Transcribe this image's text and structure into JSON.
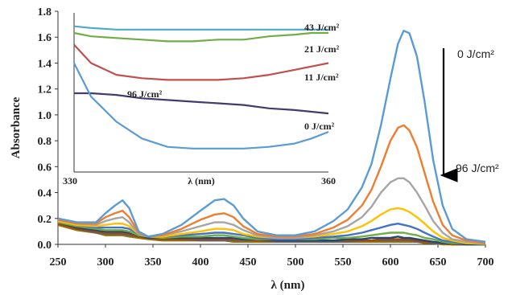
{
  "chart_data": [
    {
      "type": "line",
      "title": "",
      "xlabel": "λ (nm)",
      "ylabel": "Absorbance",
      "xlim": [
        250,
        700
      ],
      "ylim": [
        0,
        1.8
      ],
      "xticks": [
        "250",
        "300",
        "350",
        "400",
        "450",
        "500",
        "550",
        "600",
        "650",
        "700"
      ],
      "yticks": [
        "0.0",
        "0.2",
        "0.4",
        "0.6",
        "0.8",
        "1.0",
        "1.2",
        "1.4",
        "1.6",
        "1.8"
      ],
      "grid": false,
      "legend": "none",
      "dose_arrow": {
        "top_label": "0 J/cm²",
        "bottom_label": "96 J/cm²",
        "direction": "down"
      },
      "series": [
        {
          "color": "#5b9bd5",
          "x": [
            250,
            270,
            290,
            300,
            310,
            318,
            325,
            335,
            345,
            360,
            380,
            400,
            415,
            425,
            435,
            445,
            460,
            480,
            500,
            520,
            540,
            555,
            570,
            580,
            590,
            600,
            608,
            614,
            620,
            628,
            636,
            645,
            655,
            665,
            680,
            700
          ],
          "y": [
            0.2,
            0.17,
            0.17,
            0.24,
            0.3,
            0.34,
            0.28,
            0.1,
            0.06,
            0.08,
            0.15,
            0.26,
            0.34,
            0.35,
            0.3,
            0.2,
            0.1,
            0.07,
            0.07,
            0.1,
            0.18,
            0.27,
            0.44,
            0.62,
            0.92,
            1.28,
            1.55,
            1.65,
            1.63,
            1.45,
            1.1,
            0.65,
            0.3,
            0.12,
            0.04,
            0.02
          ]
        },
        {
          "color": "#ed7d31",
          "x": [
            250,
            270,
            290,
            300,
            310,
            318,
            325,
            335,
            345,
            360,
            380,
            400,
            415,
            425,
            435,
            445,
            460,
            480,
            500,
            520,
            540,
            555,
            570,
            580,
            590,
            600,
            608,
            614,
            620,
            628,
            636,
            645,
            655,
            665,
            680,
            700
          ],
          "y": [
            0.19,
            0.16,
            0.16,
            0.21,
            0.24,
            0.26,
            0.21,
            0.09,
            0.06,
            0.07,
            0.12,
            0.19,
            0.23,
            0.24,
            0.21,
            0.14,
            0.08,
            0.06,
            0.06,
            0.08,
            0.13,
            0.19,
            0.3,
            0.42,
            0.6,
            0.8,
            0.9,
            0.92,
            0.88,
            0.75,
            0.55,
            0.33,
            0.15,
            0.07,
            0.03,
            0.01
          ]
        },
        {
          "color": "#a5a5a5",
          "x": [
            250,
            270,
            290,
            300,
            310,
            318,
            325,
            335,
            345,
            360,
            380,
            400,
            415,
            425,
            435,
            445,
            460,
            480,
            500,
            520,
            540,
            555,
            570,
            580,
            590,
            600,
            608,
            614,
            620,
            628,
            636,
            645,
            655,
            665,
            680,
            700
          ],
          "y": [
            0.19,
            0.16,
            0.15,
            0.18,
            0.2,
            0.21,
            0.17,
            0.08,
            0.06,
            0.07,
            0.1,
            0.14,
            0.17,
            0.17,
            0.15,
            0.11,
            0.07,
            0.05,
            0.05,
            0.07,
            0.1,
            0.14,
            0.21,
            0.29,
            0.4,
            0.48,
            0.51,
            0.51,
            0.48,
            0.4,
            0.3,
            0.18,
            0.09,
            0.04,
            0.02,
            0.01
          ]
        },
        {
          "color": "#ffc000",
          "x": [
            250,
            270,
            290,
            300,
            310,
            318,
            325,
            335,
            345,
            360,
            380,
            400,
            415,
            425,
            435,
            445,
            460,
            480,
            500,
            520,
            540,
            555,
            570,
            580,
            590,
            600,
            608,
            614,
            620,
            628,
            636,
            645,
            655,
            665,
            680,
            700
          ],
          "y": [
            0.18,
            0.15,
            0.14,
            0.15,
            0.16,
            0.16,
            0.14,
            0.08,
            0.06,
            0.06,
            0.08,
            0.1,
            0.12,
            0.12,
            0.11,
            0.08,
            0.06,
            0.05,
            0.05,
            0.06,
            0.08,
            0.1,
            0.14,
            0.18,
            0.23,
            0.27,
            0.28,
            0.27,
            0.25,
            0.21,
            0.16,
            0.1,
            0.05,
            0.03,
            0.01,
            0.01
          ]
        },
        {
          "color": "#4472c4",
          "x": [
            250,
            270,
            290,
            300,
            310,
            318,
            325,
            335,
            345,
            360,
            380,
            400,
            415,
            425,
            435,
            445,
            460,
            480,
            500,
            520,
            540,
            555,
            570,
            580,
            590,
            600,
            608,
            614,
            620,
            628,
            636,
            645,
            655,
            665,
            680,
            700
          ],
          "y": [
            0.18,
            0.15,
            0.13,
            0.13,
            0.13,
            0.13,
            0.12,
            0.08,
            0.06,
            0.06,
            0.07,
            0.08,
            0.09,
            0.09,
            0.08,
            0.07,
            0.05,
            0.04,
            0.04,
            0.05,
            0.06,
            0.07,
            0.09,
            0.11,
            0.13,
            0.15,
            0.16,
            0.15,
            0.14,
            0.12,
            0.09,
            0.06,
            0.03,
            0.02,
            0.01,
            0.01
          ]
        },
        {
          "color": "#70ad47",
          "x": [
            250,
            270,
            290,
            300,
            310,
            318,
            325,
            335,
            345,
            360,
            380,
            400,
            415,
            425,
            435,
            445,
            460,
            480,
            500,
            520,
            540,
            555,
            570,
            580,
            590,
            600,
            608,
            614,
            620,
            628,
            636,
            645,
            655,
            665,
            680,
            700
          ],
          "y": [
            0.17,
            0.14,
            0.12,
            0.11,
            0.11,
            0.11,
            0.1,
            0.07,
            0.06,
            0.05,
            0.06,
            0.06,
            0.07,
            0.07,
            0.06,
            0.05,
            0.04,
            0.04,
            0.04,
            0.04,
            0.05,
            0.05,
            0.06,
            0.07,
            0.08,
            0.09,
            0.09,
            0.09,
            0.08,
            0.07,
            0.05,
            0.04,
            0.02,
            0.01,
            0.01,
            0.0
          ]
        },
        {
          "color": "#264478",
          "x": [
            250,
            270,
            290,
            300,
            310,
            318,
            325,
            335,
            345,
            360,
            380,
            400,
            415,
            425,
            435,
            445,
            460,
            480,
            500,
            520,
            540,
            555,
            570,
            580,
            590,
            600,
            608,
            614,
            620,
            628,
            636,
            645,
            655,
            665,
            680,
            700
          ],
          "y": [
            0.17,
            0.13,
            0.11,
            0.1,
            0.1,
            0.1,
            0.09,
            0.07,
            0.05,
            0.05,
            0.05,
            0.05,
            0.05,
            0.05,
            0.05,
            0.04,
            0.04,
            0.03,
            0.03,
            0.03,
            0.03,
            0.04,
            0.04,
            0.05,
            0.05,
            0.05,
            0.06,
            0.05,
            0.05,
            0.04,
            0.03,
            0.02,
            0.01,
            0.01,
            0.0,
            0.0
          ]
        },
        {
          "color": "#9e480e",
          "x": [
            250,
            270,
            290,
            300,
            310,
            318,
            325,
            335,
            345,
            360,
            380,
            400,
            415,
            425,
            435,
            445,
            460,
            480,
            500,
            520,
            540,
            555,
            570,
            580,
            590,
            600,
            608,
            614,
            620,
            628,
            636,
            645,
            655,
            665,
            680,
            700
          ],
          "y": [
            0.16,
            0.12,
            0.1,
            0.09,
            0.09,
            0.09,
            0.08,
            0.06,
            0.05,
            0.04,
            0.04,
            0.04,
            0.04,
            0.04,
            0.04,
            0.04,
            0.03,
            0.03,
            0.03,
            0.03,
            0.03,
            0.03,
            0.03,
            0.03,
            0.04,
            0.04,
            0.04,
            0.04,
            0.04,
            0.03,
            0.02,
            0.02,
            0.01,
            0.0,
            0.0,
            0.0
          ]
        },
        {
          "color": "#636363",
          "x": [
            250,
            270,
            290,
            300,
            310,
            318,
            325,
            335,
            345,
            360,
            380,
            400,
            415,
            425,
            435,
            445,
            460,
            480,
            500,
            520,
            540,
            555,
            570,
            580,
            590,
            600,
            608,
            614,
            620,
            628,
            636,
            645,
            655,
            665,
            680,
            700
          ],
          "y": [
            0.16,
            0.12,
            0.09,
            0.08,
            0.08,
            0.08,
            0.07,
            0.06,
            0.05,
            0.04,
            0.04,
            0.03,
            0.03,
            0.03,
            0.03,
            0.03,
            0.03,
            0.02,
            0.02,
            0.02,
            0.02,
            0.02,
            0.03,
            0.03,
            0.03,
            0.03,
            0.03,
            0.03,
            0.03,
            0.02,
            0.02,
            0.01,
            0.01,
            0.0,
            0.0,
            0.0
          ]
        },
        {
          "color": "#997300",
          "x": [
            250,
            270,
            290,
            300,
            310,
            318,
            325,
            335,
            345,
            360,
            380,
            400,
            415,
            425,
            435,
            445,
            460,
            480,
            500,
            520,
            540,
            555,
            570,
            580,
            590,
            600,
            608,
            614,
            620,
            628,
            636,
            645,
            655,
            665,
            680,
            700
          ],
          "y": [
            0.15,
            0.11,
            0.09,
            0.07,
            0.07,
            0.07,
            0.06,
            0.05,
            0.04,
            0.03,
            0.03,
            0.03,
            0.03,
            0.03,
            0.02,
            0.02,
            0.02,
            0.02,
            0.02,
            0.02,
            0.02,
            0.02,
            0.02,
            0.02,
            0.02,
            0.02,
            0.02,
            0.02,
            0.02,
            0.02,
            0.01,
            0.01,
            0.0,
            0.0,
            0.0,
            0.0
          ]
        }
      ]
    },
    {
      "type": "line",
      "title": "",
      "xlabel": "λ (nm)",
      "ylabel": "",
      "xlim": [
        330,
        360
      ],
      "ylim": [
        0.85,
        1.8
      ],
      "xtick_labels": [
        "330",
        "360"
      ],
      "grid": false,
      "series": [
        {
          "name": "43 J/cm²",
          "color": "#4bacc6",
          "x": [
            330,
            332,
            335,
            338,
            341,
            344,
            347,
            350,
            353,
            356,
            358,
            360
          ],
          "y": [
            1.72,
            1.71,
            1.7,
            1.7,
            1.7,
            1.7,
            1.7,
            1.7,
            1.7,
            1.7,
            1.7,
            1.7
          ]
        },
        {
          "name": "21 J/cm²",
          "color": "#70ad47",
          "x": [
            330,
            332,
            335,
            338,
            341,
            344,
            347,
            350,
            353,
            356,
            358,
            360
          ],
          "y": [
            1.68,
            1.66,
            1.65,
            1.64,
            1.63,
            1.63,
            1.64,
            1.64,
            1.66,
            1.67,
            1.68,
            1.68
          ]
        },
        {
          "name": "11 J/cm²",
          "color": "#c0504d",
          "x": [
            330,
            332,
            335,
            338,
            341,
            344,
            347,
            350,
            353,
            356,
            358,
            360
          ],
          "y": [
            1.61,
            1.5,
            1.43,
            1.41,
            1.4,
            1.4,
            1.4,
            1.41,
            1.43,
            1.46,
            1.48,
            1.5
          ]
        },
        {
          "name": "96 J/cm²",
          "color": "#403c6e",
          "x": [
            330,
            332,
            335,
            338,
            341,
            344,
            347,
            350,
            353,
            356,
            358,
            360
          ],
          "y": [
            1.32,
            1.32,
            1.31,
            1.29,
            1.28,
            1.27,
            1.26,
            1.25,
            1.23,
            1.22,
            1.21,
            1.2
          ]
        },
        {
          "name": "0 J/cm²",
          "color": "#5b9bd5",
          "x": [
            330,
            332,
            335,
            338,
            341,
            344,
            347,
            350,
            353,
            356,
            358,
            360
          ],
          "y": [
            1.5,
            1.3,
            1.15,
            1.05,
            1.0,
            0.99,
            0.99,
            0.99,
            1.0,
            1.02,
            1.05,
            1.09
          ]
        }
      ]
    }
  ]
}
